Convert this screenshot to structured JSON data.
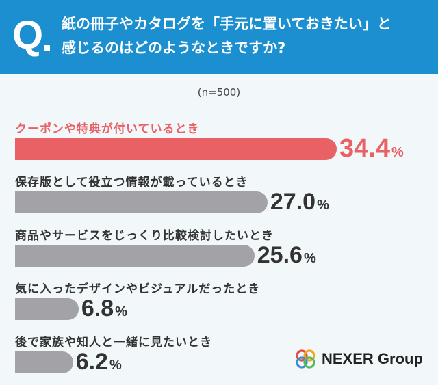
{
  "header": {
    "q_mark": "Q",
    "question_line1": "紙の冊子やカタログを「手元に置いておきたい」と",
    "question_line2": "感じるのはどのようなときですか?"
  },
  "sample_note": "(n=500)",
  "colors": {
    "header": "#1b8fd0",
    "highlight": "#e96065",
    "bar": "#a3a3a7"
  },
  "chart_data": {
    "type": "bar",
    "orientation": "horizontal",
    "categories": [
      "クーポンや特典が付いているとき",
      "保存版として役立つ情報が載っているとき",
      "商品やサービスをじっくり比較検討したいとき",
      "気に入ったデザインやビジュアルだったとき",
      "後で家族や知人と一緒に見たいとき"
    ],
    "values": [
      34.4,
      27.0,
      25.6,
      6.8,
      6.2
    ],
    "value_labels": [
      "34.4",
      "27.0",
      "25.6",
      "6.8",
      "6.2"
    ],
    "unit": "%",
    "highlight_index": 0,
    "title": "",
    "xlabel": "",
    "ylabel": ""
  },
  "logo": {
    "text": "NEXER Group",
    "icon": "nexer-rings-logo"
  }
}
